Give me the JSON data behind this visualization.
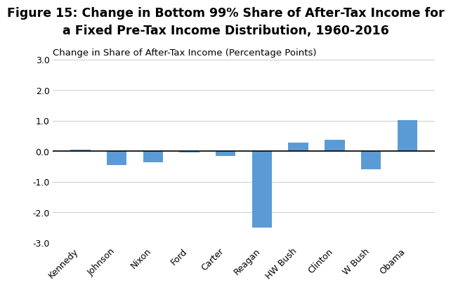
{
  "title_line1": "Figure 15: Change in Bottom 99% Share of After-Tax Income for",
  "title_line2": "a Fixed Pre-Tax Income Distribution, 1960-2016",
  "ylabel": "Change in Share of After-Tax Income (Percentage Points)",
  "categories": [
    "Kennedy",
    "Johnson",
    "Nixon",
    "Ford",
    "Carter",
    "Reagan",
    "HW Bush",
    "Clinton",
    "W Bush",
    "Obama"
  ],
  "values": [
    0.05,
    -0.45,
    -0.35,
    -0.05,
    -0.15,
    -2.5,
    0.28,
    0.38,
    -0.6,
    1.02
  ],
  "bar_color": "#5B9BD5",
  "ylim": [
    -3.0,
    3.0
  ],
  "yticks": [
    -3.0,
    -2.0,
    -1.0,
    0.0,
    1.0,
    2.0,
    3.0
  ],
  "background_color": "#ffffff",
  "title_fontsize": 12.5,
  "ylabel_fontsize": 9.5,
  "tick_fontsize": 9,
  "bar_width": 0.55
}
